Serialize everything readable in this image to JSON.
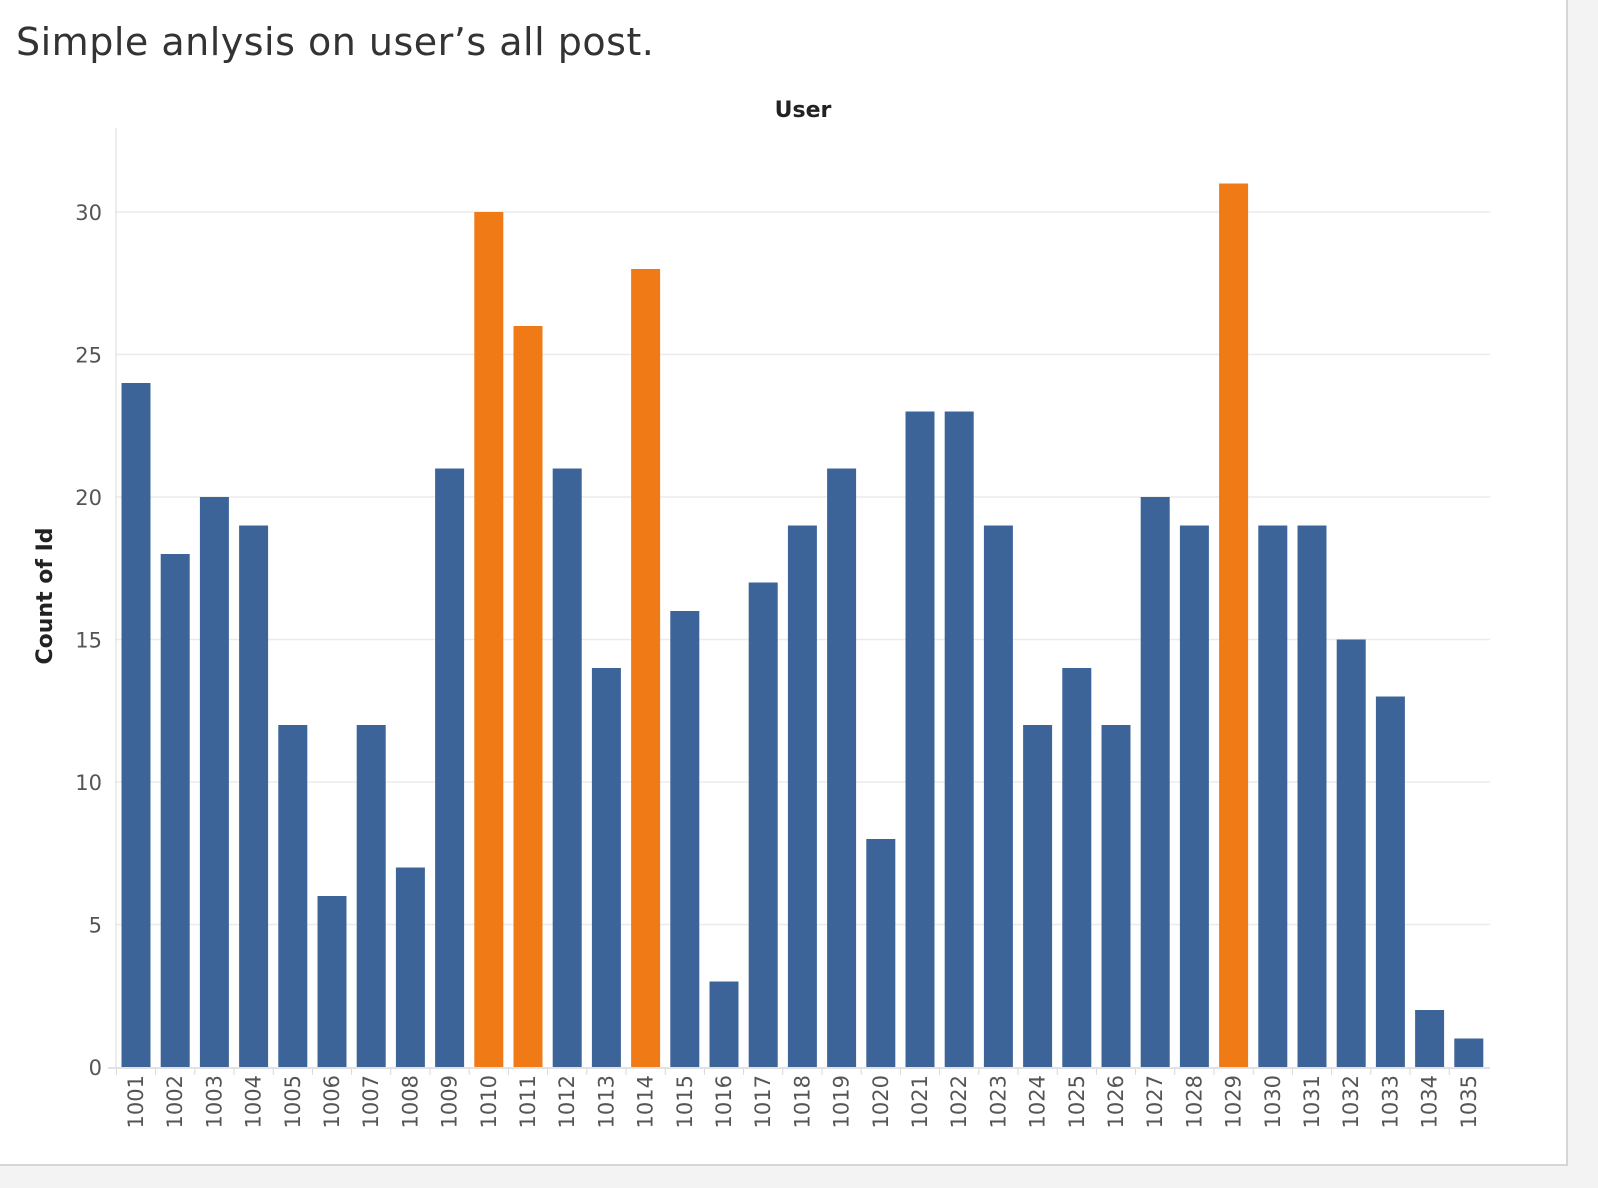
{
  "page": {
    "title": "Simple anlysis on user’s all post."
  },
  "chart_data": {
    "type": "bar",
    "xlabel": "User",
    "ylabel": "Count of Id",
    "ylim": [
      0,
      33
    ],
    "yticks": [
      0,
      5,
      10,
      15,
      20,
      25,
      30
    ],
    "grid": true,
    "colors": {
      "default": "#3d6499",
      "highlight": "#f07b16",
      "grid": "#ebebeb",
      "axis": "#d9d9d9"
    },
    "categories": [
      "1001",
      "1002",
      "1003",
      "1004",
      "1005",
      "1006",
      "1007",
      "1008",
      "1009",
      "1010",
      "1011",
      "1012",
      "1013",
      "1014",
      "1015",
      "1016",
      "1017",
      "1018",
      "1019",
      "1020",
      "1021",
      "1022",
      "1023",
      "1024",
      "1025",
      "1026",
      "1027",
      "1028",
      "1029",
      "1030",
      "1031",
      "1032",
      "1033",
      "1034",
      "1035"
    ],
    "values": [
      24,
      18,
      20,
      19,
      12,
      6,
      12,
      7,
      21,
      30,
      26,
      21,
      14,
      28,
      16,
      3,
      17,
      19,
      21,
      8,
      23,
      23,
      19,
      12,
      14,
      12,
      20,
      19,
      31,
      19,
      19,
      15,
      13,
      2,
      1
    ],
    "highlighted": [
      "1010",
      "1011",
      "1014",
      "1029"
    ]
  }
}
